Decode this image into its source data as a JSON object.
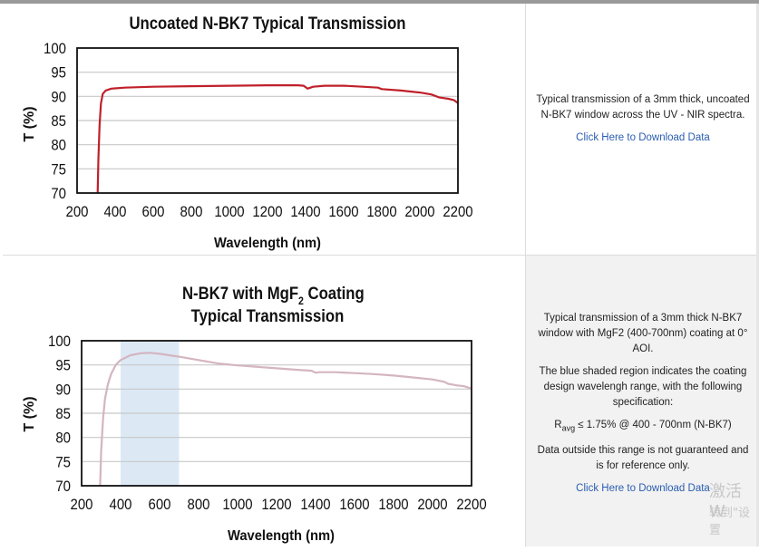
{
  "chart_data": [
    {
      "type": "line",
      "title": "Uncoated N-BK7 Typical Transmission",
      "xlabel": "Wavelength (nm)",
      "ylabel": "T (%)",
      "xlim": [
        200,
        2200
      ],
      "ylim": [
        70,
        100
      ],
      "xticks": [
        200,
        400,
        600,
        800,
        1000,
        1200,
        1400,
        1600,
        1800,
        2000,
        2200
      ],
      "yticks": [
        70,
        75,
        80,
        85,
        90,
        95,
        100
      ],
      "grid": true,
      "color": "#c0202a",
      "series": [
        {
          "name": "",
          "points": [
            [
              308,
              70
            ],
            [
              312,
              77
            ],
            [
              318,
              84
            ],
            [
              325,
              88.5
            ],
            [
              335,
              90.5
            ],
            [
              350,
              91.2
            ],
            [
              380,
              91.6
            ],
            [
              450,
              91.8
            ],
            [
              600,
              92
            ],
            [
              800,
              92.1
            ],
            [
              1000,
              92.2
            ],
            [
              1200,
              92.3
            ],
            [
              1360,
              92.3
            ],
            [
              1390,
              92.2
            ],
            [
              1410,
              91.6
            ],
            [
              1440,
              92
            ],
            [
              1500,
              92.2
            ],
            [
              1600,
              92.2
            ],
            [
              1700,
              92
            ],
            [
              1780,
              91.8
            ],
            [
              1800,
              91.5
            ],
            [
              1900,
              91.2
            ],
            [
              2000,
              90.8
            ],
            [
              2060,
              90.4
            ],
            [
              2100,
              89.8
            ],
            [
              2150,
              89.5
            ],
            [
              2180,
              89.2
            ],
            [
              2200,
              88.6
            ]
          ]
        }
      ]
    },
    {
      "type": "area",
      "title_main": "N-BK7 with MgF",
      "title_sub": "2",
      "title_tail": " Coating",
      "title_line2": "Typical Transmission",
      "xlabel": "Wavelength (nm)",
      "ylabel": "T (%)",
      "xlim": [
        200,
        2200
      ],
      "ylim": [
        70,
        100
      ],
      "xticks": [
        200,
        400,
        600,
        800,
        1000,
        1200,
        1400,
        1600,
        1800,
        2000,
        2200
      ],
      "yticks": [
        70,
        75,
        80,
        85,
        90,
        95,
        100
      ],
      "grid": true,
      "color": "#d4b5c0",
      "shade_color": "#dce9f5",
      "shaded_range": [
        400,
        700
      ],
      "series": [
        {
          "name": "",
          "points": [
            [
              295,
              70
            ],
            [
              300,
              77
            ],
            [
              310,
              84
            ],
            [
              320,
              88
            ],
            [
              335,
              91
            ],
            [
              350,
              93
            ],
            [
              375,
              95
            ],
            [
              400,
              96
            ],
            [
              450,
              97
            ],
            [
              500,
              97.4
            ],
            [
              550,
              97.5
            ],
            [
              600,
              97.3
            ],
            [
              700,
              96.7
            ],
            [
              800,
              96
            ],
            [
              900,
              95.3
            ],
            [
              1000,
              94.9
            ],
            [
              1100,
              94.6
            ],
            [
              1200,
              94.3
            ],
            [
              1300,
              94
            ],
            [
              1380,
              93.8
            ],
            [
              1400,
              93.4
            ],
            [
              1420,
              93.5
            ],
            [
              1500,
              93.5
            ],
            [
              1600,
              93.3
            ],
            [
              1700,
              93.1
            ],
            [
              1800,
              92.8
            ],
            [
              1900,
              92.4
            ],
            [
              2000,
              92
            ],
            [
              2060,
              91.5
            ],
            [
              2080,
              91.1
            ],
            [
              2120,
              90.8
            ],
            [
              2160,
              90.6
            ],
            [
              2200,
              90.1
            ]
          ]
        }
      ]
    }
  ],
  "panels": [
    {
      "description": [
        "Typical transmission of a 3mm thick, uncoated N-BK7 window across the UV - NIR spectra."
      ],
      "link": "Click Here to Download Data"
    },
    {
      "description": [
        "Typical transmission of a 3mm thick N-BK7 window with MgF2 (400-700nm) coating at 0° AOI.",
        "The blue shaded region indicates the coating design wavelengh range, with the following specification:"
      ],
      "spec": {
        "r": "R",
        "sub": "avg",
        "rest": " ≤ 1.75% @ 400 - 700nm (N-BK7)"
      },
      "note": "Data outside this range is not guaranteed and is for reference only.",
      "link": "Click Here to Download Data"
    }
  ],
  "watermark": {
    "line1": "激活 W",
    "line2": "转到\"设置"
  }
}
